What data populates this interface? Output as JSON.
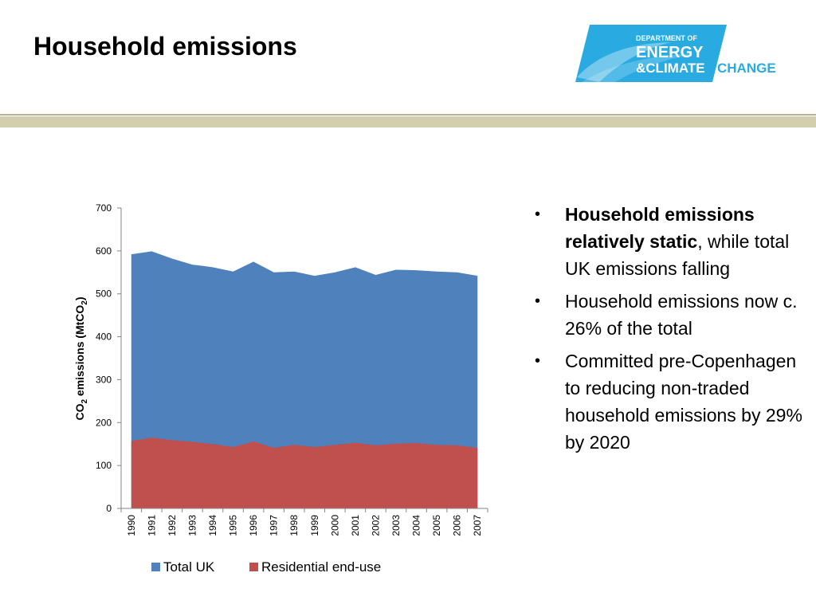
{
  "slide": {
    "title": "Household emissions"
  },
  "logo": {
    "line1": "DEPARTMENT OF",
    "line2": "ENERGY",
    "line3a": "&CLIMATE",
    "line3b": "CHANGE",
    "colors": {
      "light_blue": "#29abe2",
      "dark_blue": "#1b75bc"
    }
  },
  "bullets": [
    {
      "strong": "Household emissions relatively static",
      "rest": ", while total UK emissions falling"
    },
    {
      "strong": "",
      "rest": "Household emissions now c. 26% of the total"
    },
    {
      "strong": "",
      "rest": "Committed pre-Copenhagen to reducing non-traded household emissions by 29% by 2020"
    }
  ],
  "bullet_char": "•",
  "chart_data": {
    "type": "area",
    "x": [
      "1990",
      "1991",
      "1992",
      "1993",
      "1994",
      "1995",
      "1996",
      "1997",
      "1998",
      "1999",
      "2000",
      "2001",
      "2002",
      "2003",
      "2004",
      "2005",
      "2006",
      "2007"
    ],
    "series": [
      {
        "name": "Total UK",
        "color": "#4f81bd",
        "values": [
          592,
          599,
          582,
          568,
          562,
          552,
          575,
          550,
          552,
          542,
          550,
          562,
          544,
          556,
          555,
          552,
          550,
          542
        ]
      },
      {
        "name": "Residential end-use",
        "color": "#c0504d",
        "values": [
          157,
          165,
          159,
          155,
          150,
          143,
          156,
          141,
          148,
          143,
          148,
          153,
          147,
          151,
          152,
          148,
          147,
          141
        ]
      }
    ],
    "ylabel_main": "CO",
    "ylabel_sub": "2",
    "ylabel_mid": " emissions (MtCO",
    "ylabel_sub2": "2",
    "ylabel_end": ")",
    "ylim": [
      0,
      700
    ],
    "yticks": [
      0,
      100,
      200,
      300,
      400,
      500,
      600,
      700
    ],
    "legend_position": "bottom",
    "grid": false
  }
}
